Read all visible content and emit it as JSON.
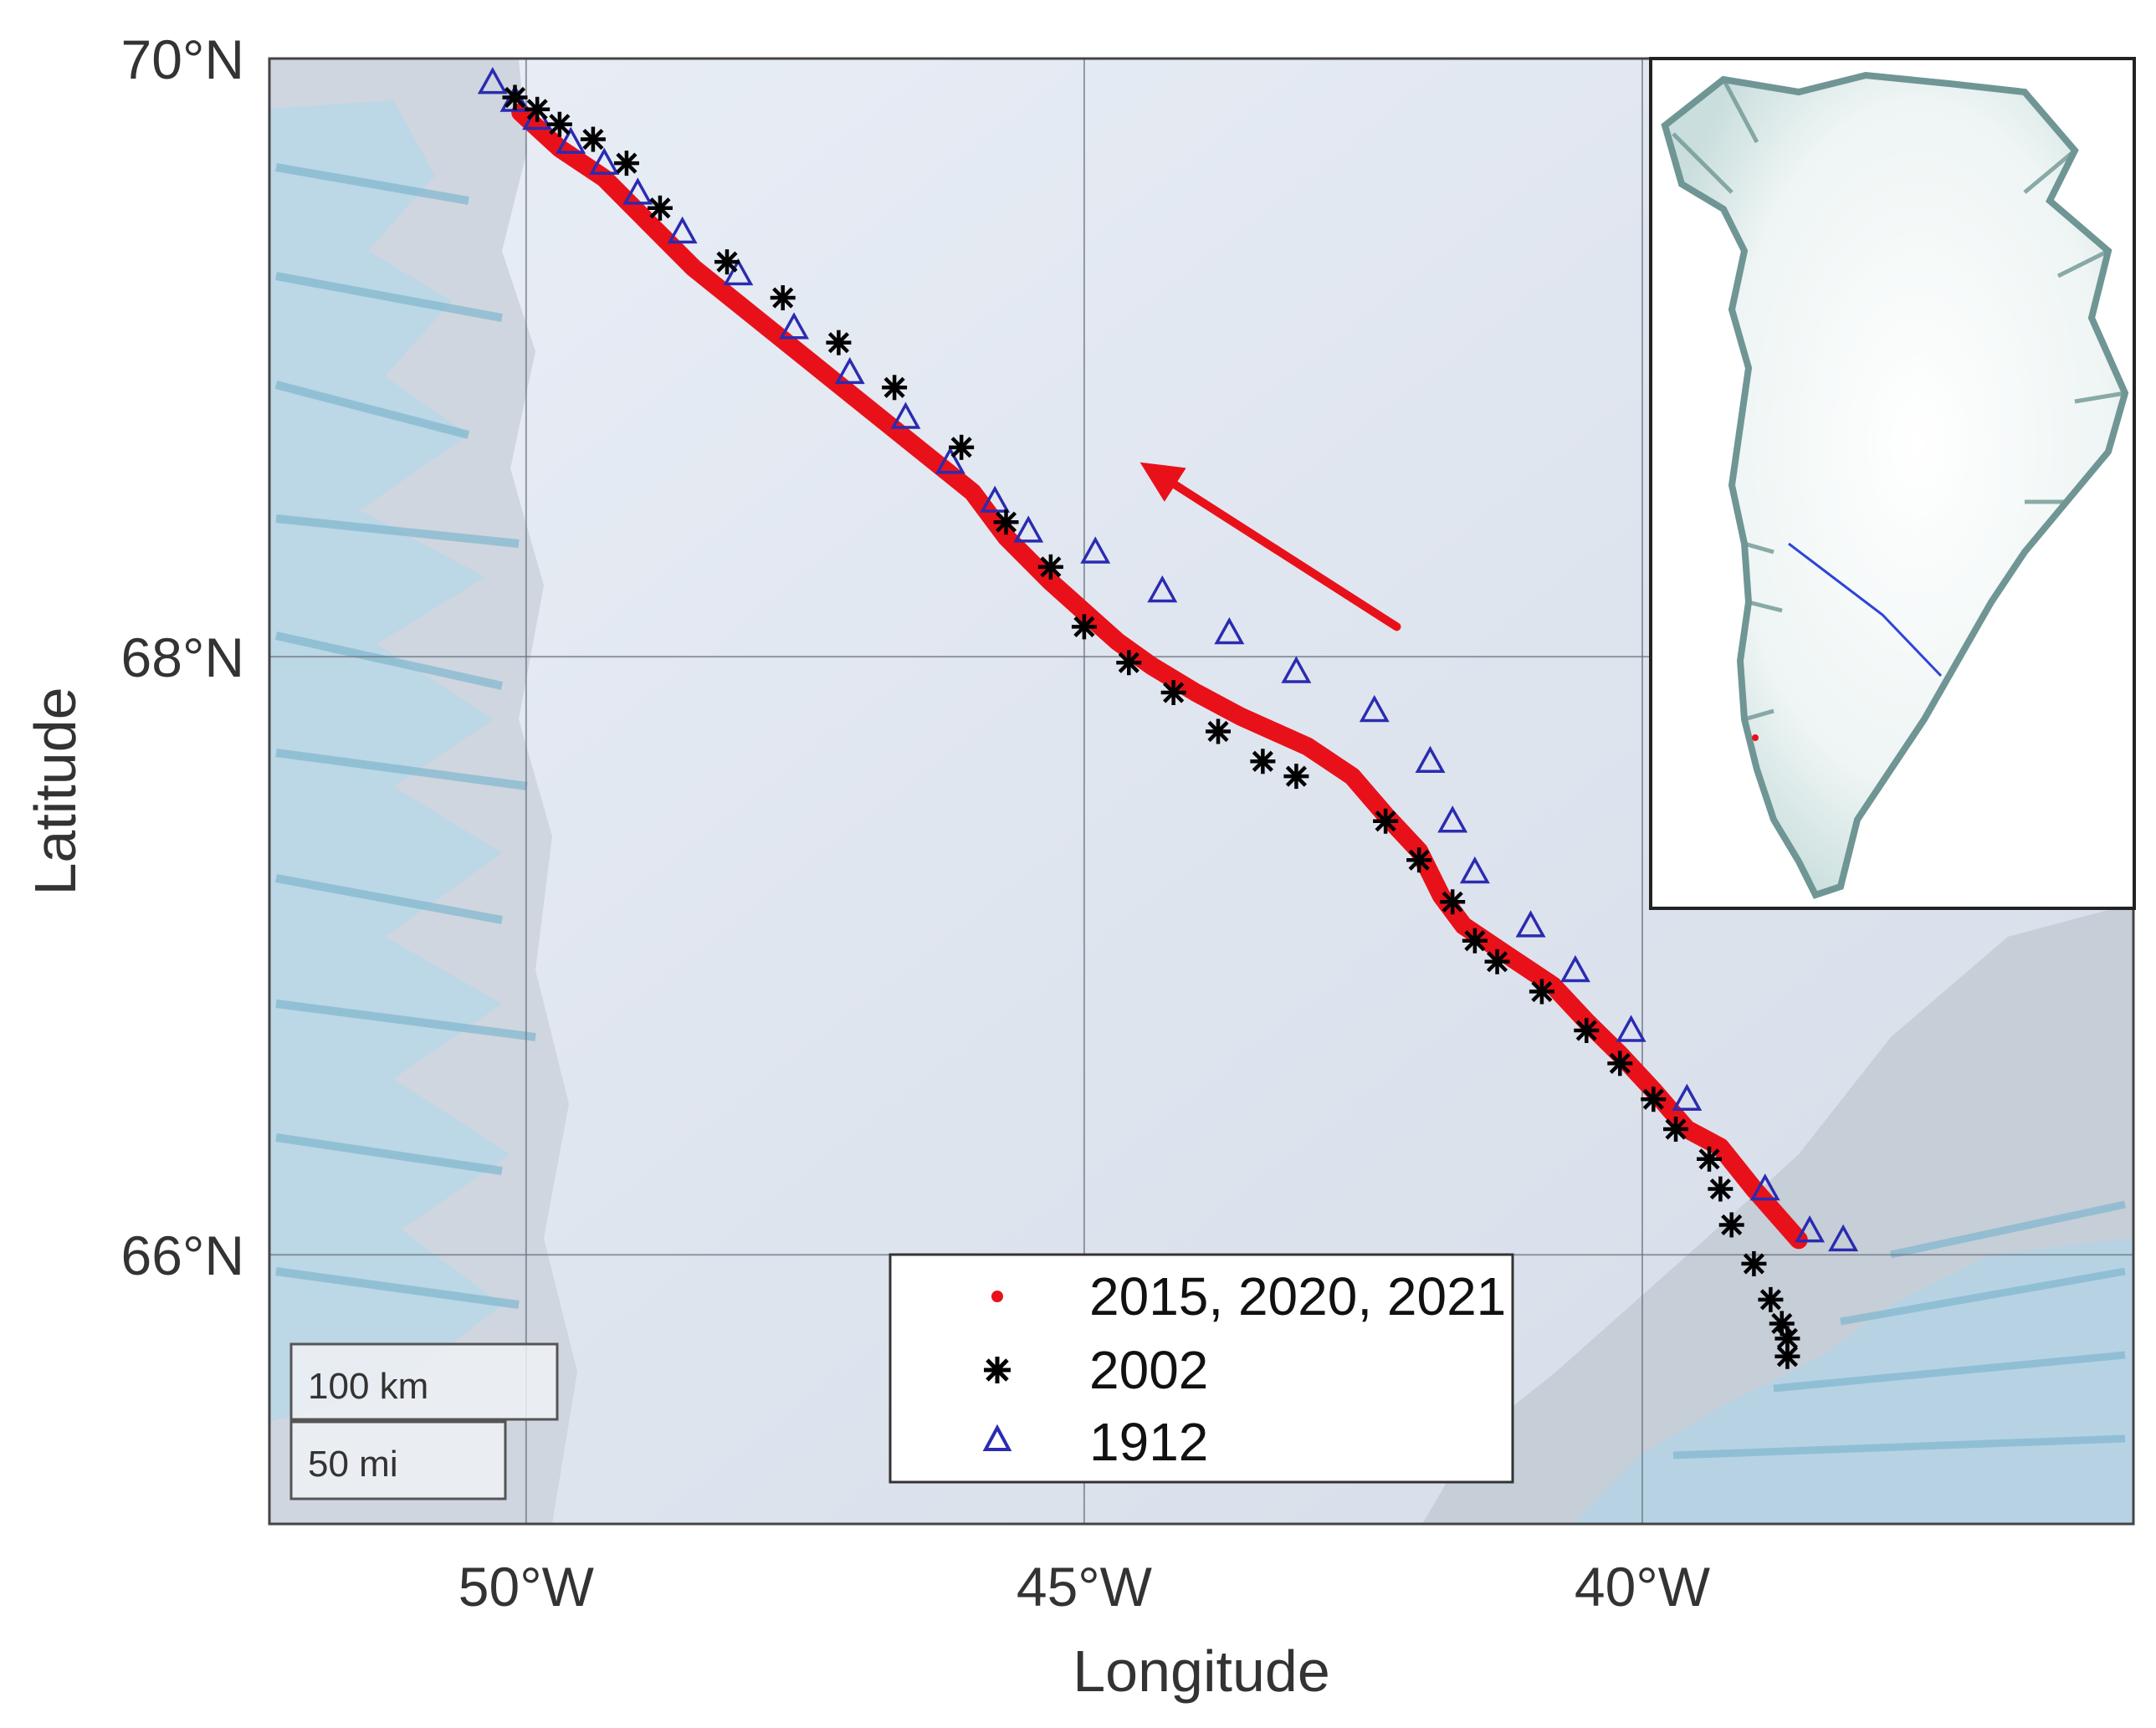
{
  "map": {
    "xlabel": "Longitude",
    "ylabel": "Latitude",
    "lon_ticks": [
      {
        "value": -50,
        "label": "50°W"
      },
      {
        "value": -45,
        "label": "45°W"
      },
      {
        "value": -40,
        "label": "40°W"
      }
    ],
    "lat_ticks": [
      {
        "value": 70,
        "label": "70°N"
      },
      {
        "value": 68,
        "label": "68°N"
      },
      {
        "value": 66,
        "label": "66°N"
      }
    ],
    "lon_range": [
      -52.3,
      -35.6
    ],
    "lat_range": [
      65.1,
      70.0
    ],
    "grid": true,
    "legend": {
      "placement": "bottom-center",
      "entries": [
        {
          "label": "2015, 2020, 2021",
          "marker": "red-dot",
          "color": "#e8111a"
        },
        {
          "label": "2002",
          "marker": "black-asterisk",
          "color": "#000000"
        },
        {
          "label": "1912",
          "marker": "blue-triangle",
          "color": "#2b2bb0"
        }
      ]
    },
    "scale_bar": {
      "km_label": "100 km",
      "mi_label": "50 mi"
    },
    "direction_arrow": {
      "from": [
        -42.2,
        68.1
      ],
      "to": [
        -44.5,
        68.65
      ],
      "color": "#e8111a"
    },
    "inset": {
      "description_icon": "greenland-overview-map-icon",
      "route_color": "#2e44d8"
    }
  },
  "chart_data": {
    "type": "scatter",
    "x_unit": "degrees longitude",
    "y_unit": "degrees latitude",
    "series": [
      {
        "name": "2015, 2020, 2021",
        "color": "#e8111a",
        "x": [
          -50.05,
          -49.7,
          -49.3,
          -48.9,
          -48.5,
          -48.0,
          -47.5,
          -47.0,
          -46.5,
          -46.0,
          -45.7,
          -45.3,
          -45.0,
          -44.7,
          -44.4,
          -44.0,
          -43.6,
          -43.0,
          -42.6,
          -42.3,
          -42.0,
          -41.8,
          -41.6,
          -41.2,
          -40.8,
          -40.5,
          -40.2,
          -39.9,
          -39.6,
          -39.3,
          -39.0,
          -38.6
        ],
        "y": [
          69.82,
          69.7,
          69.6,
          69.45,
          69.3,
          69.15,
          69.0,
          68.85,
          68.7,
          68.55,
          68.4,
          68.25,
          68.15,
          68.05,
          67.97,
          67.88,
          67.8,
          67.7,
          67.6,
          67.47,
          67.35,
          67.2,
          67.1,
          67.0,
          66.9,
          66.78,
          66.67,
          66.55,
          66.42,
          66.36,
          66.22,
          66.05
        ]
      },
      {
        "name": "2002",
        "color": "#000000",
        "x": [
          -50.1,
          -49.9,
          -49.7,
          -49.4,
          -49.1,
          -48.8,
          -48.2,
          -47.7,
          -47.2,
          -46.7,
          -46.1,
          -45.7,
          -45.3,
          -45.0,
          -44.6,
          -44.2,
          -43.8,
          -43.4,
          -43.1,
          -42.3,
          -42.0,
          -41.7,
          -41.5,
          -41.3,
          -40.9,
          -40.5,
          -40.2,
          -39.9,
          -39.7,
          -39.4,
          -39.3,
          -39.2,
          -39.0,
          -38.85,
          -38.75,
          -38.7,
          -38.7
        ],
        "y": [
          69.87,
          69.83,
          69.78,
          69.73,
          69.65,
          69.5,
          69.32,
          69.2,
          69.05,
          68.9,
          68.7,
          68.45,
          68.3,
          68.1,
          67.98,
          67.88,
          67.75,
          67.65,
          67.6,
          67.45,
          67.32,
          67.18,
          67.05,
          66.98,
          66.88,
          66.75,
          66.64,
          66.52,
          66.42,
          66.32,
          66.22,
          66.1,
          65.97,
          65.85,
          65.77,
          65.72,
          65.66
        ]
      },
      {
        "name": "1912",
        "color": "#2b2bb0",
        "x": [
          -50.3,
          -50.1,
          -49.9,
          -49.6,
          -49.3,
          -49.0,
          -48.6,
          -48.1,
          -47.6,
          -47.1,
          -46.6,
          -46.2,
          -45.8,
          -45.5,
          -44.9,
          -44.3,
          -43.7,
          -43.1,
          -42.4,
          -41.9,
          -41.7,
          -41.5,
          -41.0,
          -40.6,
          -40.1,
          -39.6,
          -38.9,
          -38.5,
          -38.2
        ],
        "y": [
          69.92,
          69.86,
          69.8,
          69.72,
          69.65,
          69.55,
          69.42,
          69.28,
          69.1,
          68.95,
          68.8,
          68.65,
          68.52,
          68.42,
          68.35,
          68.22,
          68.08,
          67.95,
          67.82,
          67.65,
          67.45,
          67.28,
          67.1,
          66.95,
          66.75,
          66.52,
          66.22,
          66.08,
          66.05
        ]
      }
    ]
  }
}
